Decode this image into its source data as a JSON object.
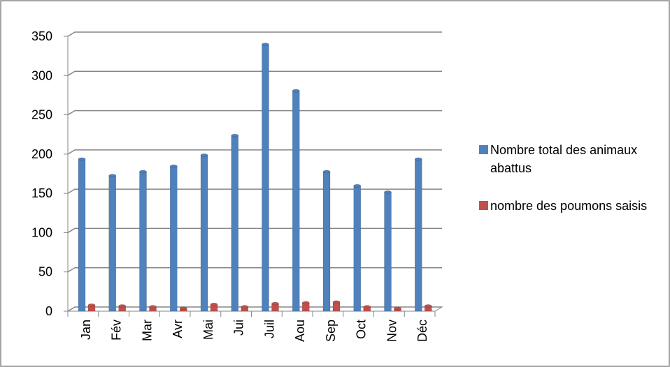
{
  "chart_data": {
    "type": "bar",
    "categories": [
      "Jan",
      "Fév",
      "Mar",
      "Avr",
      "Mai",
      "Jui",
      "Juil",
      "Aou",
      "Sep",
      "Oct",
      "Nov",
      "Déc"
    ],
    "series": [
      {
        "name": "Nombre total des animaux abattus",
        "color": "#4f81bd",
        "values": [
          191,
          170,
          175,
          182,
          196,
          221,
          337,
          278,
          175,
          157,
          149,
          191
        ]
      },
      {
        "name": "nombre des poumons saisis",
        "color": "#c0504d",
        "values": [
          5,
          4,
          3,
          1,
          6,
          3,
          7,
          8,
          9,
          3,
          1,
          4
        ]
      }
    ],
    "ylim": [
      0,
      350
    ],
    "yticks": [
      0,
      50,
      100,
      150,
      200,
      250,
      300,
      350
    ],
    "grid": true,
    "legend": "right"
  }
}
